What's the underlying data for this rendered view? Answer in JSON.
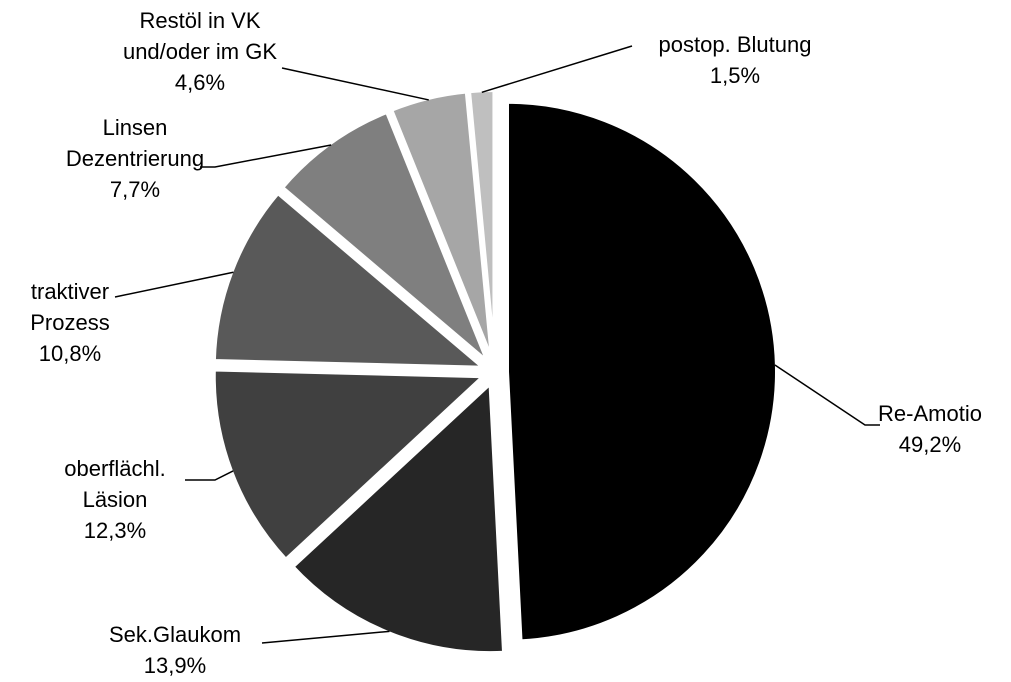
{
  "chart_data": {
    "type": "pie",
    "categories": [
      "Re-Amotio",
      "Sek.Glaukom",
      "oberflächl.\nLäsion",
      "traktiver\nProzess",
      "Linsen\nDezentrierung",
      "Restöl in VK\nund/oder im GK",
      "postop. Blutung"
    ],
    "values": [
      49.2,
      13.9,
      12.3,
      10.8,
      7.7,
      4.6,
      1.5
    ],
    "value_labels": [
      "49,2%",
      "13,9%",
      "12,3%",
      "10,8%",
      "7,7%",
      "4,6%",
      "1,5%"
    ],
    "colors": [
      "#000000",
      "#262626",
      "#404040",
      "#595959",
      "#7f7f7f",
      "#a6a6a6",
      "#bfbfbf"
    ]
  }
}
